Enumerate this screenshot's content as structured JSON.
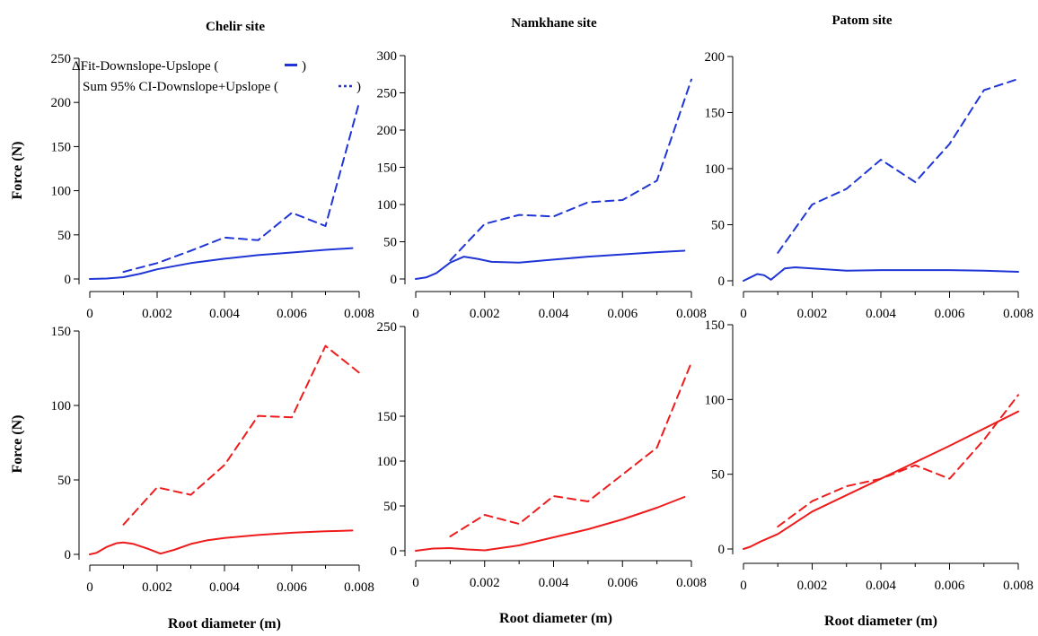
{
  "figure": {
    "column_titles": [
      "Chelir site",
      "Namkhane site",
      "Patom site"
    ],
    "ylabel": "Force (N)",
    "xlabel": "Root diameter (m)",
    "legend": {
      "line1": "ΔFit-Downslope-Upslope (",
      "line2": "Sum 95% CI-Downslope+Upslope (",
      "close": ")"
    },
    "colors": {
      "top": "#1f35d6",
      "bottom": "#ee1c1c"
    }
  },
  "chart_data": [
    {
      "type": "line",
      "row": "top",
      "site": "Chelir site",
      "xlim": [
        0,
        0.008
      ],
      "ylim": [
        0,
        250
      ],
      "xticks": [
        "0",
        "0.002",
        "0.004",
        "0.006",
        "0.008"
      ],
      "yticks": [
        0,
        50,
        100,
        150,
        200,
        250
      ],
      "series": [
        {
          "style": "solid",
          "x": [
            0,
            0.0005,
            0.001,
            0.0015,
            0.002,
            0.003,
            0.004,
            0.005,
            0.006,
            0.007,
            0.0078
          ],
          "y": [
            0,
            0.5,
            2,
            6,
            11,
            18,
            23,
            27,
            30,
            33,
            35
          ]
        },
        {
          "style": "dashed",
          "x": [
            0.001,
            0.002,
            0.003,
            0.004,
            0.005,
            0.006,
            0.007,
            0.008
          ],
          "y": [
            8,
            18,
            32,
            47,
            44,
            75,
            60,
            200
          ]
        }
      ]
    },
    {
      "type": "line",
      "row": "top",
      "site": "Namkhane site",
      "xlim": [
        0,
        0.008
      ],
      "ylim": [
        0,
        300
      ],
      "xticks": [
        "0",
        "0.002",
        "0.004",
        "0.006",
        "0.008"
      ],
      "yticks": [
        0,
        50,
        100,
        150,
        200,
        250,
        300
      ],
      "series": [
        {
          "style": "solid",
          "x": [
            0,
            0.0003,
            0.0006,
            0.001,
            0.0014,
            0.0018,
            0.0022,
            0.003,
            0.004,
            0.005,
            0.006,
            0.007,
            0.0078
          ],
          "y": [
            0,
            2,
            8,
            22,
            30,
            27,
            23,
            22,
            26,
            30,
            33,
            36,
            38
          ]
        },
        {
          "style": "dashed",
          "x": [
            0.001,
            0.002,
            0.003,
            0.004,
            0.005,
            0.006,
            0.007,
            0.008
          ],
          "y": [
            25,
            74,
            86,
            84,
            103,
            106,
            132,
            268
          ]
        }
      ]
    },
    {
      "type": "line",
      "row": "top",
      "site": "Patom site",
      "xlim": [
        0,
        0.008
      ],
      "ylim": [
        0,
        200
      ],
      "xticks": [
        "0",
        "0.002",
        "0.004",
        "0.006",
        "0.008"
      ],
      "yticks": [
        0,
        50,
        100,
        150,
        200
      ],
      "series": [
        {
          "style": "solid",
          "x": [
            0,
            0.0002,
            0.0004,
            0.0006,
            0.0008,
            0.001,
            0.0012,
            0.0015,
            0.002,
            0.003,
            0.004,
            0.005,
            0.006,
            0.007,
            0.008
          ],
          "y": [
            0,
            3,
            6,
            5,
            1,
            6,
            11,
            12,
            11,
            9,
            9.5,
            9.5,
            9.5,
            9,
            8
          ]
        },
        {
          "style": "dashed",
          "x": [
            0.001,
            0.002,
            0.003,
            0.004,
            0.005,
            0.006,
            0.007,
            0.008
          ],
          "y": [
            25,
            68,
            82,
            108,
            88,
            122,
            170,
            180
          ]
        }
      ]
    },
    {
      "type": "line",
      "row": "bottom",
      "site": "Chelir site",
      "xlim": [
        0,
        0.008
      ],
      "ylim": [
        0,
        150
      ],
      "xticks": [
        "0",
        "0.002",
        "0.004",
        "0.006",
        "0.008"
      ],
      "yticks": [
        0,
        50,
        100,
        150
      ],
      "series": [
        {
          "style": "solid",
          "x": [
            0,
            0.0002,
            0.0005,
            0.0008,
            0.001,
            0.0013,
            0.0017,
            0.0021,
            0.0025,
            0.003,
            0.0035,
            0.004,
            0.005,
            0.006,
            0.007,
            0.0078
          ],
          "y": [
            0,
            1,
            5,
            7.5,
            8,
            7,
            4,
            0.5,
            3,
            7,
            9.5,
            11,
            13,
            14.5,
            15.5,
            16
          ]
        },
        {
          "style": "dashed",
          "x": [
            0.001,
            0.002,
            0.003,
            0.004,
            0.005,
            0.006,
            0.007,
            0.008
          ],
          "y": [
            20,
            45,
            40,
            60,
            93,
            92,
            140,
            122
          ]
        }
      ]
    },
    {
      "type": "line",
      "row": "bottom",
      "site": "Namkhane site",
      "xlim": [
        0,
        0.008
      ],
      "ylim": [
        0,
        250
      ],
      "xticks": [
        "0",
        "0.002",
        "0.004",
        "0.006",
        "0.008"
      ],
      "yticks": [
        0,
        50,
        100,
        150,
        250
      ],
      "series": [
        {
          "style": "solid",
          "x": [
            0,
            0.0005,
            0.001,
            0.0015,
            0.002,
            0.003,
            0.004,
            0.005,
            0.006,
            0.007,
            0.0078
          ],
          "y": [
            0,
            2.5,
            3,
            1.5,
            0.5,
            6,
            15,
            24,
            35,
            48,
            60
          ]
        },
        {
          "style": "dashed",
          "x": [
            0.001,
            0.002,
            0.003,
            0.004,
            0.005,
            0.006,
            0.007,
            0.008
          ],
          "y": [
            16,
            40,
            30,
            61,
            55,
            85,
            115,
            210
          ]
        }
      ]
    },
    {
      "type": "line",
      "row": "bottom",
      "site": "Patom site",
      "xlim": [
        0,
        0.008
      ],
      "ylim": [
        0,
        150
      ],
      "xticks": [
        "0",
        "0.002",
        "0.004",
        "0.006",
        "0.008"
      ],
      "yticks": [
        0,
        50,
        100,
        150
      ],
      "series": [
        {
          "style": "solid",
          "x": [
            0,
            0.0002,
            0.0005,
            0.001,
            0.002,
            0.004,
            0.006,
            0.008
          ],
          "y": [
            0,
            1.5,
            5,
            10,
            25,
            47,
            69,
            92
          ]
        },
        {
          "style": "dashed",
          "x": [
            0.001,
            0.002,
            0.003,
            0.004,
            0.005,
            0.006,
            0.007,
            0.008
          ],
          "y": [
            15,
            32,
            42,
            47,
            56,
            47,
            73,
            103
          ]
        }
      ]
    }
  ]
}
